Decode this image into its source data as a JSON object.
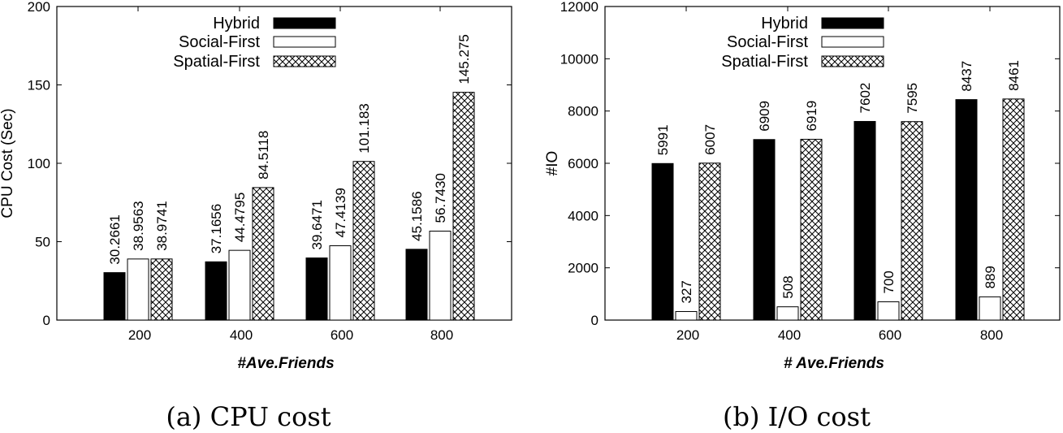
{
  "chart_data": [
    {
      "type": "bar",
      "caption": "(a) CPU cost",
      "xlabel": "#Ave.Friends",
      "ylabel": "CPU Cost (Sec)",
      "categories": [
        "200",
        "400",
        "600",
        "800"
      ],
      "ylim": [
        0,
        200
      ],
      "yticks": [
        "0",
        "50",
        "100",
        "150",
        "200"
      ],
      "series": [
        {
          "name": "Hybrid",
          "fill": "solid",
          "values": [
            30.2661,
            37.1656,
            39.6471,
            45.1586
          ],
          "labels": [
            "30.2661",
            "37.1656",
            "39.6471",
            "45.1586"
          ]
        },
        {
          "name": "Social-First",
          "fill": "empty",
          "values": [
            38.9563,
            44.4795,
            47.4139,
            56.743
          ],
          "labels": [
            "38.9563",
            "44.4795",
            "47.4139",
            "56.7430"
          ]
        },
        {
          "name": "Spatial-First",
          "fill": "crosshatch",
          "values": [
            38.9741,
            84.5118,
            101.183,
            145.275
          ],
          "labels": [
            "38.9741",
            "84.5118",
            "101.183",
            "145.275"
          ]
        }
      ],
      "legend": "top-left"
    },
    {
      "type": "bar",
      "caption": "(b) I/O cost",
      "xlabel": "# Ave.Friends",
      "ylabel": "#IO",
      "categories": [
        "200",
        "400",
        "600",
        "800"
      ],
      "ylim": [
        0,
        12000
      ],
      "yticks": [
        "0",
        "2000",
        "4000",
        "6000",
        "8000",
        "10000",
        "12000"
      ],
      "series": [
        {
          "name": "Hybrid",
          "fill": "solid",
          "values": [
            5991,
            6909,
            7602,
            8437
          ],
          "labels": [
            "5991",
            "6909",
            "7602",
            "8437"
          ]
        },
        {
          "name": "Social-First",
          "fill": "empty",
          "values": [
            327,
            508,
            700,
            889
          ],
          "labels": [
            "327",
            "508",
            "700",
            "889"
          ]
        },
        {
          "name": "Spatial-First",
          "fill": "crosshatch",
          "values": [
            6007,
            6919,
            7595,
            8461
          ],
          "labels": [
            "6007",
            "6919",
            "7595",
            "8461"
          ]
        }
      ],
      "legend": "top-left"
    }
  ]
}
